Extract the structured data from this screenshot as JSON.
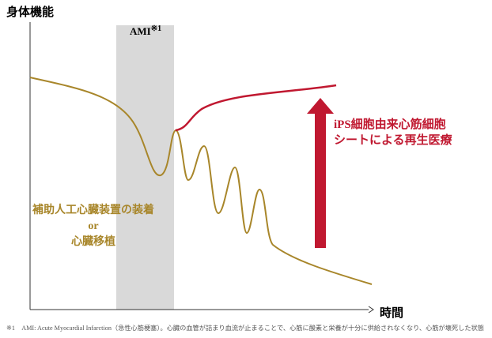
{
  "axes": {
    "y_label": "身体機能",
    "x_label": "時間"
  },
  "band": {
    "label": "AMI",
    "note_mark": "※1"
  },
  "left_annotation": {
    "line1": "補助人工心臓装置の装着",
    "line2": "or",
    "line3": "心臓移植"
  },
  "right_annotation": {
    "line1": "iPS細胞由来心筋細胞",
    "line2": "シートによる再生医療"
  },
  "footnote": "※1　AMI: Acute Myocardial Infarction（急性心筋梗塞）。心臓の血管が詰まり血流が止まることで、心筋に酸素と栄養が十分に供給されなくなり、心筋が壊死した状態"
}
